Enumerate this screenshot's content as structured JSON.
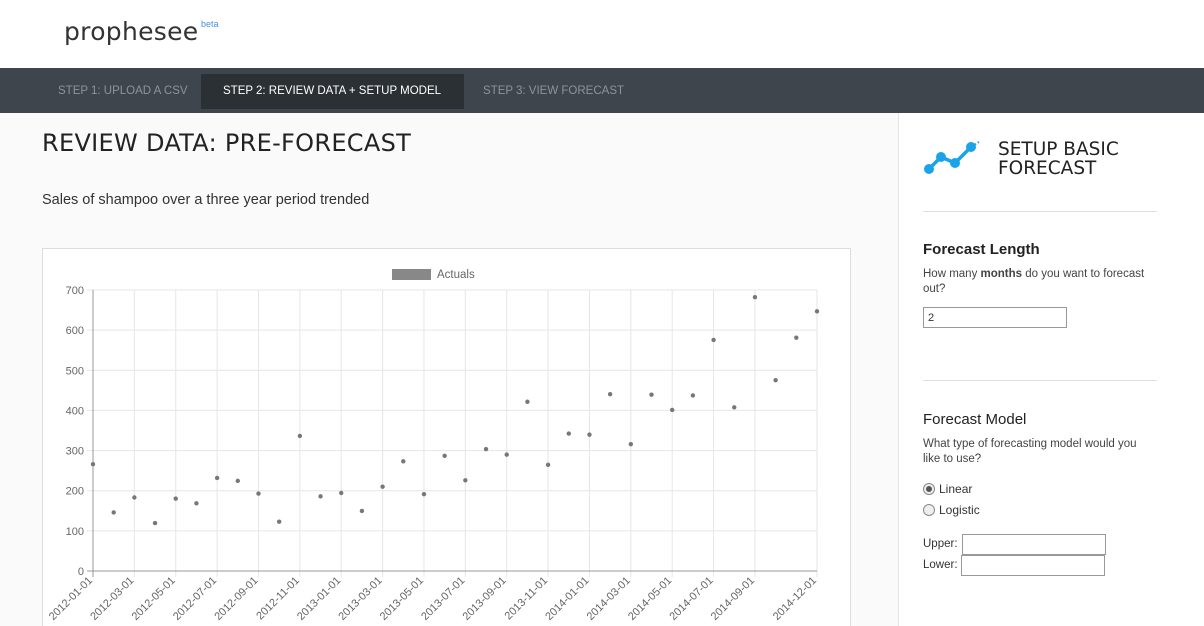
{
  "app": {
    "brand": "prophesee",
    "badge": "beta"
  },
  "nav": {
    "tabs": [
      {
        "label": "STEP 1: UPLOAD A CSV",
        "active": false
      },
      {
        "label": "STEP 2: REVIEW DATA + SETUP MODEL",
        "active": true
      },
      {
        "label": "STEP 3: VIEW FORECAST",
        "active": false
      }
    ]
  },
  "main": {
    "title": "REVIEW DATA: PRE-FORECAST",
    "description": "Sales of shampoo over a three year period trended"
  },
  "sidebar": {
    "title": "SETUP BASIC FORECAST",
    "icon": "line-chart-icon",
    "forecast_length": {
      "heading": "Forecast Length",
      "question_pre": "How many ",
      "question_bold": "months",
      "question_post": " do you want to forecast out?",
      "value": "2"
    },
    "forecast_model": {
      "heading": "Forecast Model",
      "question": "What type of forecasting model would you like to use?",
      "options": [
        {
          "label": "Linear",
          "checked": true
        },
        {
          "label": "Logistic",
          "checked": false
        }
      ],
      "upper_label": "Upper:",
      "lower_label": "Lower:"
    }
  },
  "colors": {
    "nav_bg": "#3e454c",
    "nav_active": "#2b3035",
    "accent": "#1aa3e8",
    "point": "#777777"
  },
  "chart_data": {
    "type": "scatter",
    "legend": [
      "Actuals"
    ],
    "legend_position": "top",
    "ylim": [
      0,
      700
    ],
    "yticks": [
      "700",
      "600",
      "500",
      "400",
      "300",
      "200",
      "100",
      "0"
    ],
    "grid": true,
    "xticks": [
      "2012-01-01",
      "2012-03-01",
      "2012-05-01",
      "2012-07-01",
      "2012-09-01",
      "2012-11-01",
      "2013-01-01",
      "2013-03-01",
      "2013-05-01",
      "2013-07-01",
      "2013-09-01",
      "2013-11-01",
      "2014-01-01",
      "2014-03-01",
      "2014-05-01",
      "2014-07-01",
      "2014-09-01",
      "2014-12-01"
    ],
    "series": [
      {
        "name": "Actuals",
        "x": [
          "2012-01-01",
          "2012-02-01",
          "2012-03-01",
          "2012-04-01",
          "2012-05-01",
          "2012-06-01",
          "2012-07-01",
          "2012-08-01",
          "2012-09-01",
          "2012-10-01",
          "2012-11-01",
          "2012-12-01",
          "2013-01-01",
          "2013-02-01",
          "2013-03-01",
          "2013-04-01",
          "2013-05-01",
          "2013-06-01",
          "2013-07-01",
          "2013-08-01",
          "2013-09-01",
          "2013-10-01",
          "2013-11-01",
          "2013-12-01",
          "2014-01-01",
          "2014-02-01",
          "2014-03-01",
          "2014-04-01",
          "2014-05-01",
          "2014-06-01",
          "2014-07-01",
          "2014-08-01",
          "2014-09-01",
          "2014-10-01",
          "2014-11-01",
          "2014-12-01"
        ],
        "values": [
          266.0,
          145.9,
          183.1,
          119.3,
          180.3,
          168.5,
          231.8,
          224.5,
          192.8,
          122.9,
          336.5,
          185.9,
          194.3,
          149.5,
          210.1,
          273.3,
          191.4,
          287.0,
          226.0,
          303.6,
          289.9,
          421.6,
          264.5,
          342.3,
          339.7,
          440.4,
          315.9,
          439.3,
          401.3,
          437.4,
          575.5,
          407.6,
          682.0,
          475.3,
          581.3,
          646.9
        ]
      }
    ]
  }
}
